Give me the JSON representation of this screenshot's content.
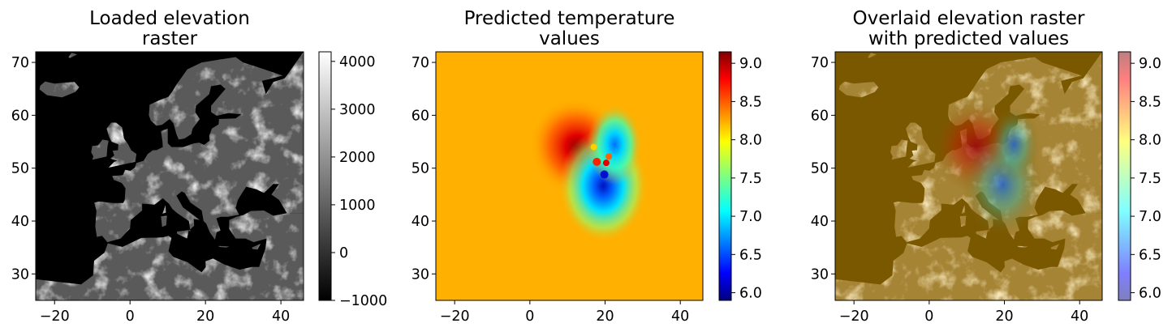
{
  "chart_data": [
    {
      "type": "heatmap",
      "title": [
        "Loaded elevation",
        "raster"
      ],
      "xlim": [
        -25,
        46
      ],
      "ylim": [
        25,
        72
      ],
      "x_ticks": [
        "−20",
        "0",
        "20",
        "40"
      ],
      "x_tick_values": [
        -20,
        0,
        20,
        40
      ],
      "y_ticks": [
        "30",
        "40",
        "50",
        "60",
        "70"
      ],
      "y_tick_values": [
        30,
        40,
        50,
        60,
        70
      ],
      "colormap": "gray",
      "colorbar": {
        "range": [
          -1000,
          4200
        ],
        "ticks": [
          "−1000",
          "0",
          "1000",
          "2000",
          "3000",
          "4000"
        ],
        "tick_values": [
          -1000,
          0,
          1000,
          2000,
          3000,
          4000
        ]
      }
    },
    {
      "type": "heatmap",
      "title": [
        "Predicted temperature",
        "values"
      ],
      "xlim": [
        -25,
        46
      ],
      "ylim": [
        25,
        72
      ],
      "x_ticks": [
        "−20",
        "0",
        "20",
        "40"
      ],
      "x_tick_values": [
        -20,
        0,
        20,
        40
      ],
      "y_ticks": [
        "30",
        "40",
        "50",
        "60",
        "70"
      ],
      "y_tick_values": [
        30,
        40,
        50,
        60,
        70
      ],
      "colormap": "jet",
      "background_value": 8.35,
      "hotspots": [
        {
          "x": 14,
          "y": 53,
          "value": 9.1
        },
        {
          "x": 23,
          "y": 54.5,
          "value": 6.8
        },
        {
          "x": 19.5,
          "y": 48.5,
          "value": 6.2
        }
      ],
      "colorbar": {
        "range": [
          5.9,
          9.15
        ],
        "ticks": [
          "6.0",
          "6.5",
          "7.0",
          "7.5",
          "8.0",
          "8.5",
          "9.0"
        ],
        "tick_values": [
          6.0,
          6.5,
          7.0,
          7.5,
          8.0,
          8.5,
          9.0
        ]
      }
    },
    {
      "type": "heatmap",
      "title": [
        "Overlaid elevation raster",
        "with predicted values"
      ],
      "xlim": [
        -25,
        46
      ],
      "ylim": [
        25,
        72
      ],
      "x_ticks": [
        "−20",
        "0",
        "20",
        "40"
      ],
      "x_tick_values": [
        -20,
        0,
        20,
        40
      ],
      "y_ticks": [
        "30",
        "40",
        "50",
        "60",
        "70"
      ],
      "y_tick_values": [
        30,
        40,
        50,
        60,
        70
      ],
      "colormap": "jet (alpha 0.5) over gray",
      "colorbar": {
        "range": [
          5.9,
          9.15
        ],
        "ticks": [
          "6.0",
          "6.5",
          "7.0",
          "7.5",
          "8.0",
          "8.5",
          "9.0"
        ],
        "tick_values": [
          6.0,
          6.5,
          7.0,
          7.5,
          8.0,
          8.5,
          9.0
        ]
      }
    }
  ]
}
